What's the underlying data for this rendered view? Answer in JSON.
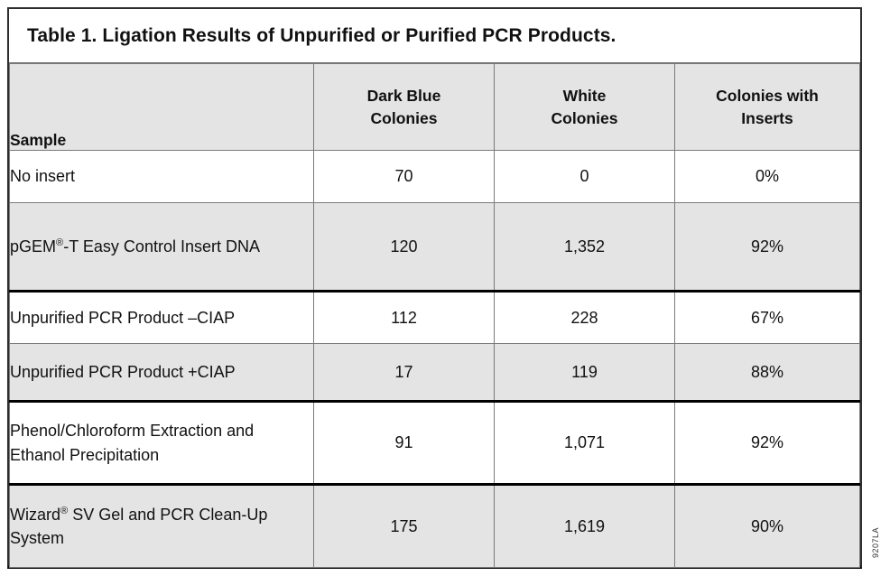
{
  "title": "Table 1. Ligation Results of Unpurified or Purified PCR Products.",
  "figure_code": "9207LA",
  "table": {
    "headers": {
      "sample": "Sample",
      "dark_blue": [
        "Dark Blue",
        "Colonies"
      ],
      "white": [
        "White",
        "Colonies"
      ],
      "inserts": [
        "Colonies with",
        "Inserts"
      ]
    },
    "rows": [
      {
        "sample": "No insert",
        "dark_blue": "70",
        "white": "0",
        "inserts": "0%"
      },
      {
        "sample": "pGEM®-T Easy Control Insert DNA",
        "dark_blue": "120",
        "white": "1,352",
        "inserts": "92%"
      },
      {
        "sample": "Unpurified PCR Product –CIAP",
        "dark_blue": "112",
        "white": "228",
        "inserts": "67%"
      },
      {
        "sample": "Unpurified PCR Product +CIAP",
        "dark_blue": "17",
        "white": "119",
        "inserts": "88%"
      },
      {
        "sample": "Phenol/Chloroform Extraction and Ethanol Precipitation",
        "dark_blue": "91",
        "white": "1,071",
        "inserts": "92%"
      },
      {
        "sample": "Wizard® SV Gel and PCR Clean-Up System",
        "dark_blue": "175",
        "white": "1,619",
        "inserts": "90%"
      }
    ]
  }
}
